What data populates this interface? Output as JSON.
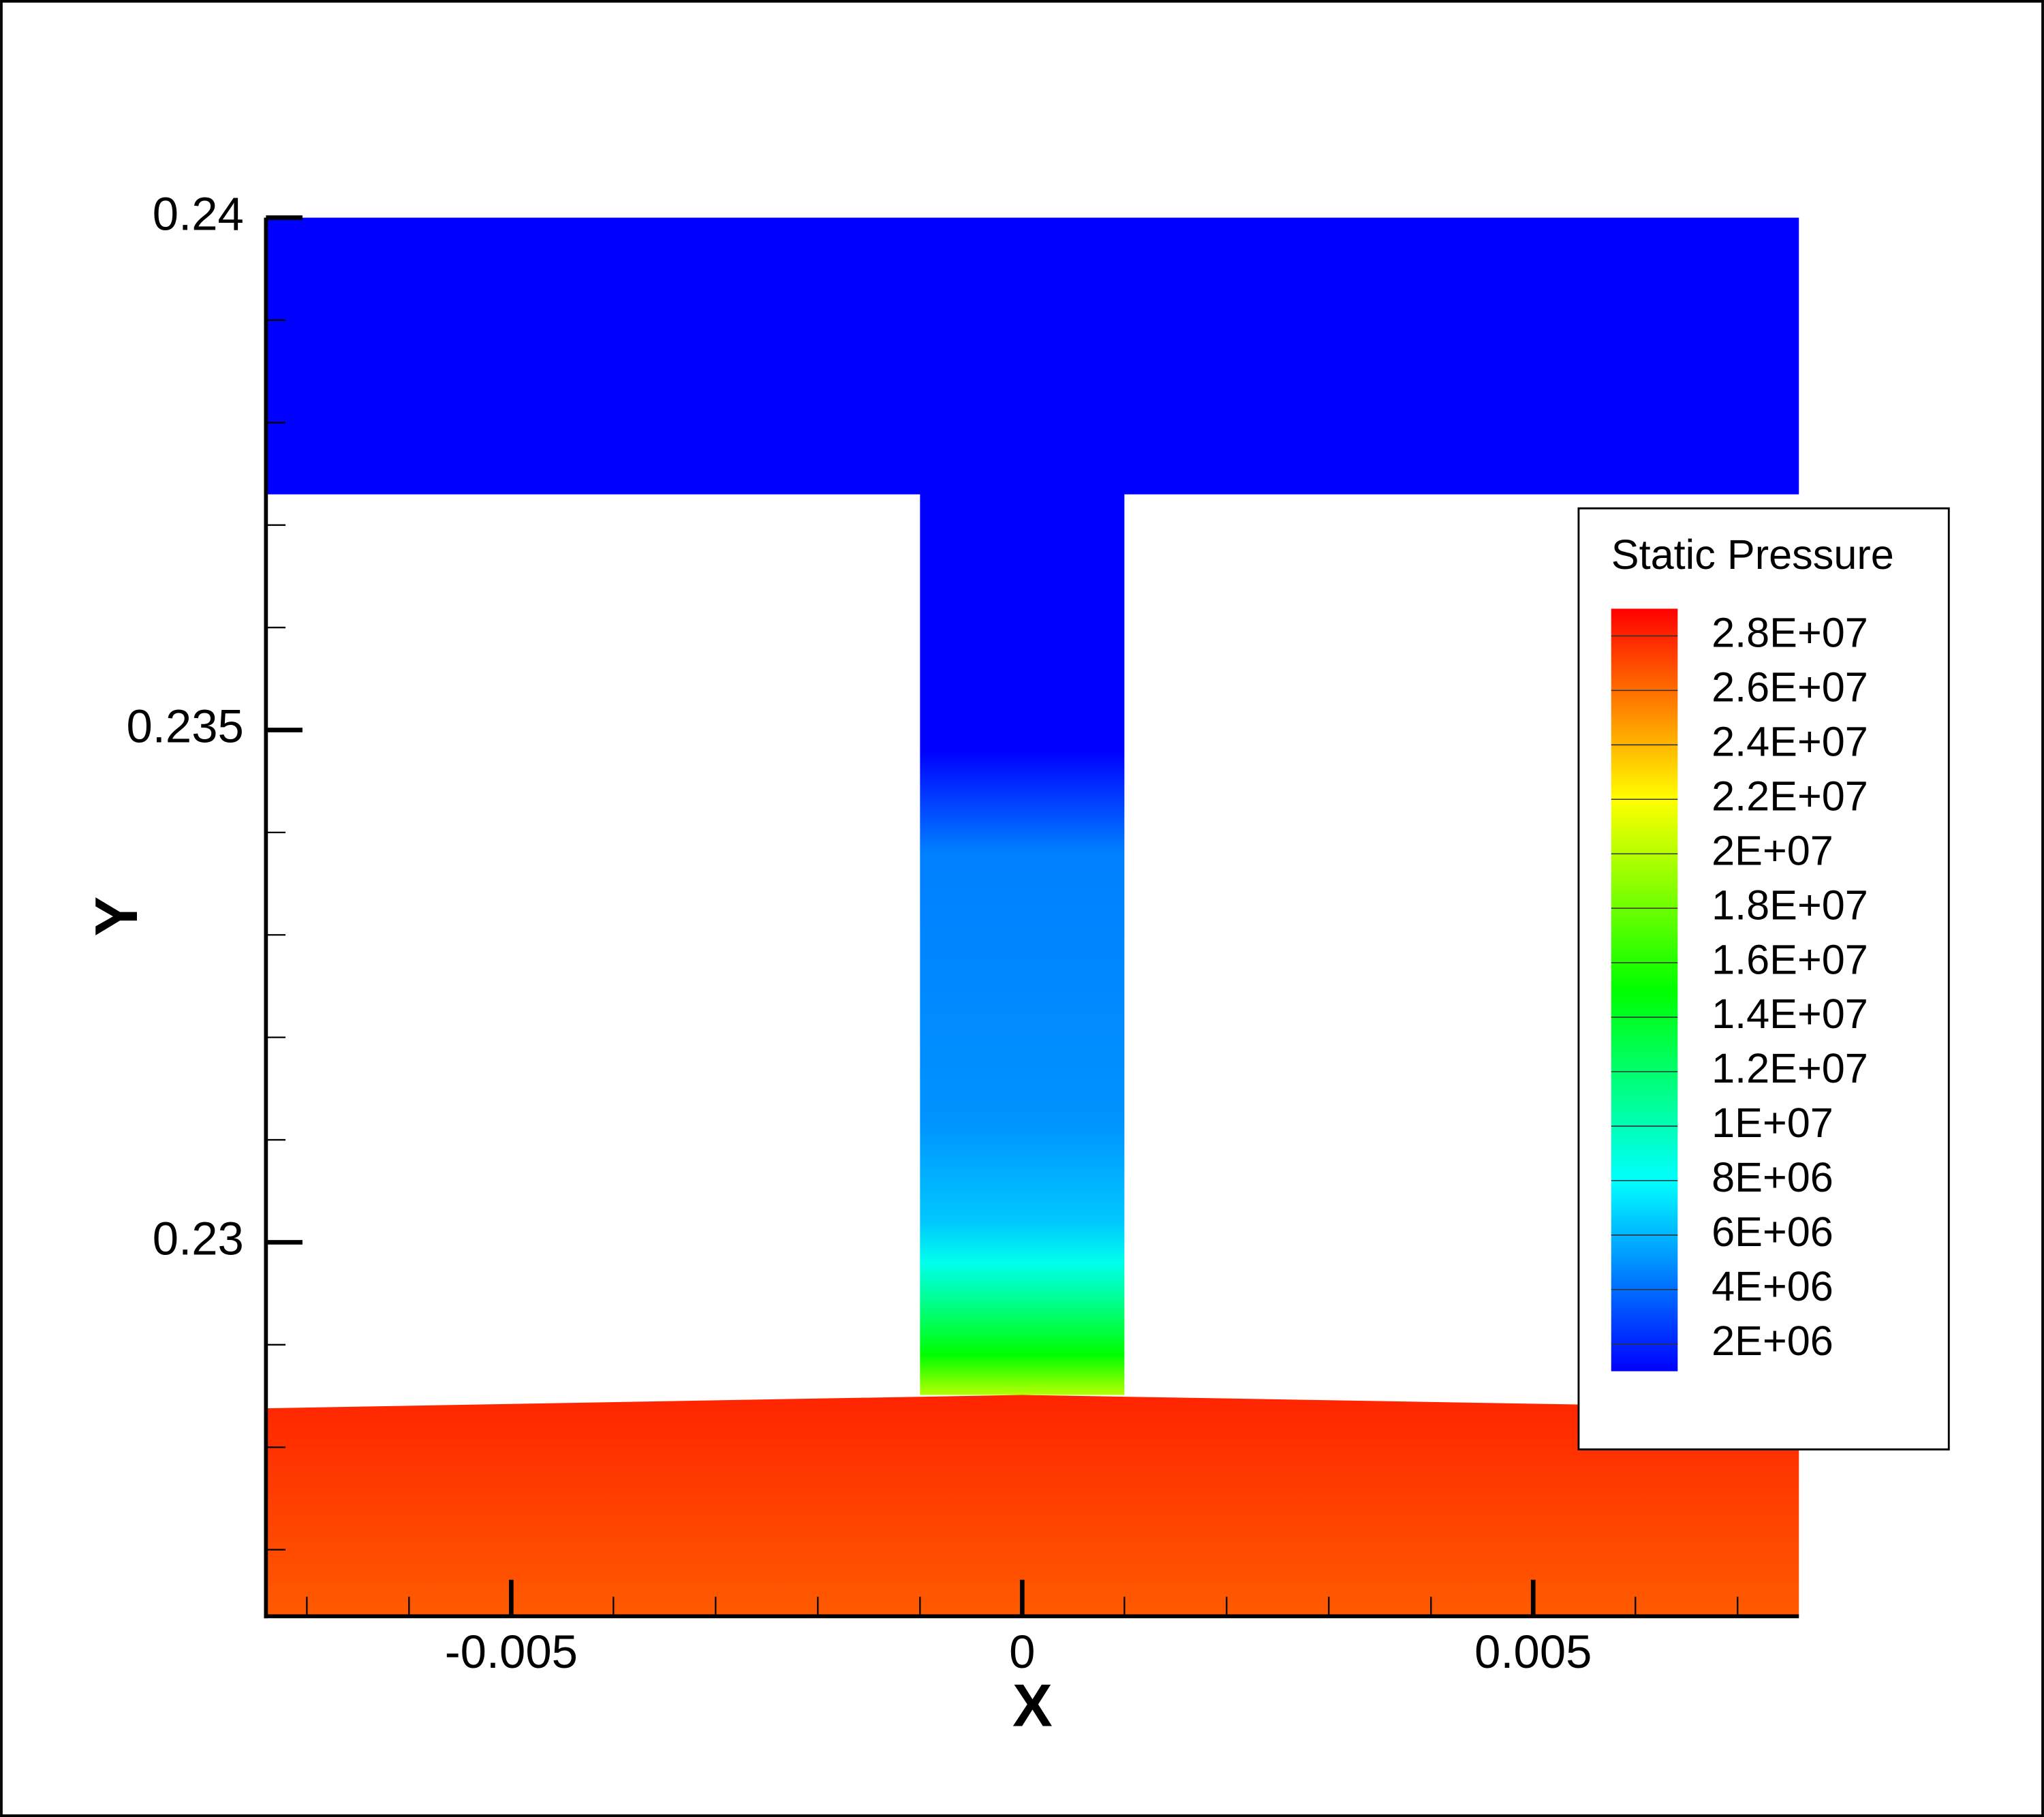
{
  "chart_data": {
    "type": "contour",
    "x_label": "X",
    "y_label": "Y",
    "xlim": [
      -0.0074,
      0.0076
    ],
    "ylim": [
      0.22635,
      0.24
    ],
    "xticks": [
      -0.005,
      0,
      0.005
    ],
    "yticks": [
      0.23,
      0.235,
      0.24
    ],
    "xminorticks": [
      -0.007,
      -0.006,
      -0.004,
      -0.003,
      -0.002,
      -0.001,
      0.001,
      0.002,
      0.003,
      0.004,
      0.006,
      0.007
    ],
    "yminorticks": [
      0.227,
      0.228,
      0.229,
      0.231,
      0.232,
      0.233,
      0.234,
      0.236,
      0.237,
      0.238,
      0.239
    ],
    "colormap": [
      {
        "value": 1000000,
        "color": "#0000ff"
      },
      {
        "value": 8000000,
        "color": "#00ffff"
      },
      {
        "value": 15000000,
        "color": "#00ff00"
      },
      {
        "value": 22000000,
        "color": "#ffff00"
      },
      {
        "value": 29000000,
        "color": "#ff0000"
      }
    ],
    "legend": {
      "title": "Static Pressure",
      "range": [
        1000000,
        29000000
      ],
      "levels": [
        {
          "value": 28000000,
          "label": "2.8E+07"
        },
        {
          "value": 26000000,
          "label": "2.6E+07"
        },
        {
          "value": 24000000,
          "label": "2.4E+07"
        },
        {
          "value": 22000000,
          "label": "2.2E+07"
        },
        {
          "value": 20000000,
          "label": "2E+07"
        },
        {
          "value": 18000000,
          "label": "1.8E+07"
        },
        {
          "value": 16000000,
          "label": "1.6E+07"
        },
        {
          "value": 14000000,
          "label": "1.4E+07"
        },
        {
          "value": 12000000,
          "label": "1.2E+07"
        },
        {
          "value": 10000000,
          "label": "1E+07"
        },
        {
          "value": 8000000,
          "label": "8E+06"
        },
        {
          "value": 6000000,
          "label": "6E+06"
        },
        {
          "value": 4000000,
          "label": "4E+06"
        },
        {
          "value": 2000000,
          "label": "2E+06"
        }
      ]
    },
    "zones": [
      {
        "polygon": [
          [
            -0.0074,
            0.24
          ],
          [
            0.0076,
            0.24
          ],
          [
            0.0076,
            0.2373
          ],
          [
            -0.0074,
            0.2373
          ]
        ],
        "profile": {
          "y": [
            0.24,
            0.2373
          ],
          "values": [
            1000000,
            1000000
          ]
        }
      },
      {
        "polygon": [
          [
            -0.001,
            0.2374
          ],
          [
            0.001,
            0.2374
          ],
          [
            0.001,
            0.22851
          ],
          [
            -0.001,
            0.22851
          ]
        ],
        "profile": {
          "y": [
            0.2374,
            0.2348,
            0.2338,
            0.2312,
            0.2302,
            0.2298,
            0.2293,
            0.2289,
            0.22851
          ],
          "values": [
            1000000,
            1000000,
            4500000,
            5000000,
            6500000,
            8500000,
            12000000,
            15000000,
            20000000
          ]
        }
      },
      {
        "polygon": [
          [
            -0.0074,
            0.22838
          ],
          [
            0,
            0.22851
          ],
          [
            0.0076,
            0.22838
          ],
          [
            0.0076,
            0.22635
          ],
          [
            -0.0074,
            0.22635
          ]
        ],
        "profile": {
          "y": [
            0.22851,
            0.22635
          ],
          "values": [
            28000000,
            26500000
          ]
        }
      }
    ]
  }
}
